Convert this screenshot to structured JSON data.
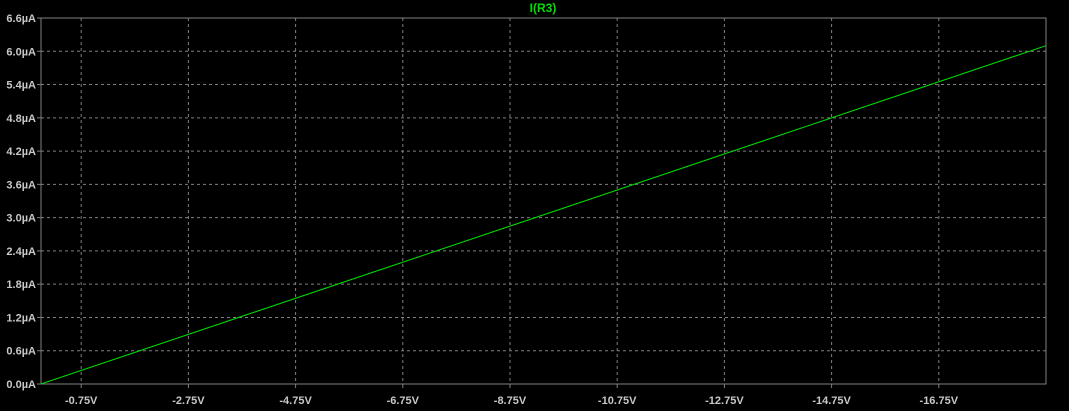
{
  "colors": {
    "background": "#000000",
    "frame": "#808080",
    "grid": "#808080",
    "tick_text": "#c8c8c8",
    "trace": "#00e000",
    "title_text": "#00e000"
  },
  "chart_data": {
    "type": "line",
    "title": "I(R3)",
    "xlabel": "",
    "ylabel": "",
    "x_axis_reversed": true,
    "x_unit": "V",
    "y_unit": "µA",
    "xlim": [
      0.0,
      -18.75
    ],
    "ylim": [
      0.0,
      6.6
    ],
    "x_ticks": [
      -0.75,
      -2.75,
      -4.75,
      -6.75,
      -8.75,
      -10.75,
      -12.75,
      -14.75,
      -16.75
    ],
    "x_tick_labels": [
      "-0.75V",
      "-2.75V",
      "-4.75V",
      "-6.75V",
      "-8.75V",
      "-10.75V",
      "-12.75V",
      "-14.75V",
      "-16.75V"
    ],
    "y_ticks": [
      0.0,
      0.6,
      1.2,
      1.8,
      2.4,
      3.0,
      3.6,
      4.2,
      4.8,
      5.4,
      6.0,
      6.6
    ],
    "y_tick_labels": [
      "0.0µA",
      "0.6µA",
      "1.2µA",
      "1.8µA",
      "2.4µA",
      "3.0µA",
      "3.6µA",
      "4.2µA",
      "4.8µA",
      "5.4µA",
      "6.0µA",
      "6.6µA"
    ],
    "grid": true,
    "series": [
      {
        "name": "I(R3)",
        "x": [
          0.0,
          -18.75
        ],
        "y": [
          0.0,
          6.1
        ]
      }
    ]
  }
}
